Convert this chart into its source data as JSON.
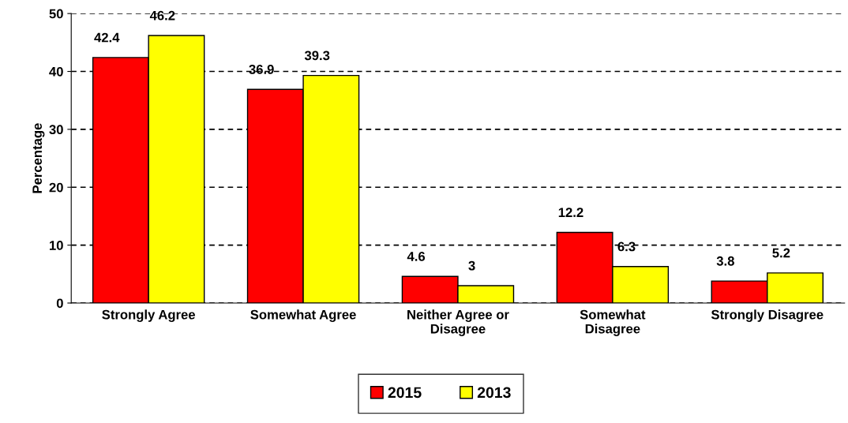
{
  "chart_data": {
    "type": "bar",
    "ylabel": "Percentage",
    "categories": [
      "Strongly Agree",
      "Somewhat Agree",
      "Neither Agree or\nDisagree",
      "Somewhat\nDisagree",
      "Strongly Disagree"
    ],
    "series": [
      {
        "name": "2015",
        "color": "#ff0000",
        "values": [
          42.4,
          36.9,
          4.6,
          12.2,
          3.8
        ]
      },
      {
        "name": "2013",
        "color": "#ffff00",
        "values": [
          46.2,
          39.3,
          3,
          6.3,
          5.2
        ]
      }
    ],
    "ylim": [
      0,
      50
    ],
    "yticks": [
      0,
      10,
      20,
      30,
      40,
      50
    ],
    "grid": "y",
    "legend": "bottom",
    "data_labels": true
  }
}
